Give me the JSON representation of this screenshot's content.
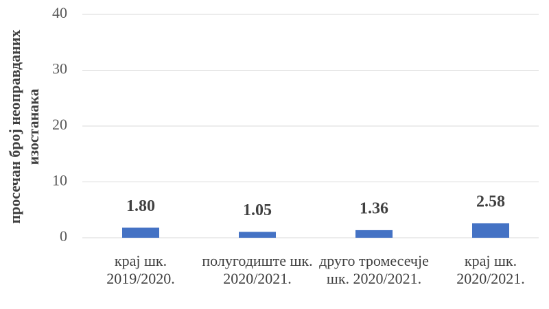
{
  "chart_data": {
    "type": "bar",
    "ylabel": [
      "просечан број неоправданих",
      "изостанака"
    ],
    "categories": [
      "крај шк. 2019/2020.",
      "полугодиште шк. 2020/2021.",
      "друго тромесечје шк. 2020/2021.",
      "крај шк. 2020/2021."
    ],
    "values": [
      1.8,
      1.05,
      1.36,
      2.58
    ],
    "value_labels": [
      "1.80",
      "1.05",
      "1.36",
      "2.58"
    ],
    "color": "#4472c4",
    "ylim": [
      0,
      40
    ],
    "yticks": [
      0,
      10,
      20,
      30,
      40
    ],
    "grid": true
  }
}
